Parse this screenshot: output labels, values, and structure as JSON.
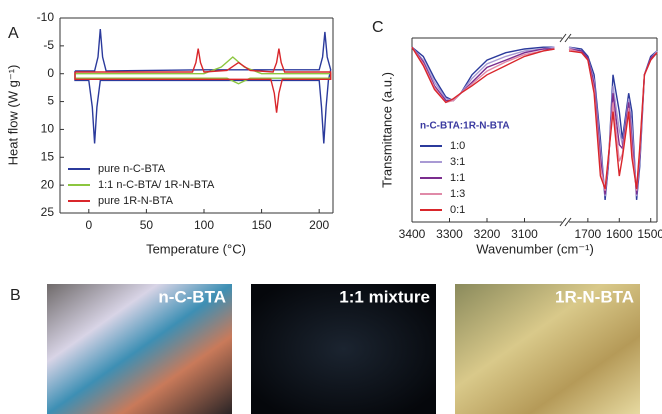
{
  "chart_data": [
    {
      "type": "line",
      "panel": "A",
      "xlabel": "Temperature (°C)",
      "ylabel": "Heat flow (W g⁻¹)",
      "xlim": [
        -25,
        212
      ],
      "xticks": [
        0,
        50,
        100,
        150,
        200
      ],
      "ylim": [
        25,
        -10
      ],
      "yticks": [
        -10,
        -5,
        0,
        5,
        10,
        15,
        20,
        25
      ],
      "legend": "lower left",
      "series": [
        {
          "name": "pure n-C-BTA",
          "color": "#2b3a9c",
          "x": [
            -12,
            5,
            8,
            10,
            12,
            15,
            100,
            200,
            203,
            205,
            207,
            210,
            208,
            206,
            204,
            202,
            200,
            100,
            10,
            7,
            5,
            3,
            0,
            -12,
            -12
          ],
          "values": [
            -0.5,
            -0.5,
            -3,
            -8,
            -3,
            -0.5,
            -0.7,
            -0.7,
            -3,
            -7.5,
            -3,
            -0.7,
            1.2,
            6,
            12.5,
            6,
            1.2,
            1.2,
            1.2,
            6,
            12.5,
            6,
            1.2,
            1.2,
            -0.5
          ]
        },
        {
          "name": "1:1 n-C-BTA/ 1R-N-BTA",
          "color": "#8cc63f",
          "x": [
            -12,
            100,
            115,
            125,
            135,
            150,
            210,
            210,
            140,
            130,
            120,
            0,
            -12,
            -12
          ],
          "values": [
            0,
            0,
            -1.2,
            -3,
            -1.2,
            0,
            0,
            0.8,
            0.8,
            1.8,
            0.8,
            0.8,
            0.8,
            0
          ]
        },
        {
          "name": "pure 1R-N-BTA",
          "color": "#d9262b",
          "x": [
            -12,
            90,
            93,
            95,
            97,
            100,
            120,
            130,
            140,
            160,
            163,
            165,
            167,
            170,
            210,
            210,
            168,
            165,
            163,
            161,
            158,
            0,
            -12,
            -12
          ],
          "values": [
            -0.3,
            -0.3,
            -2,
            -4.5,
            -2,
            -0.3,
            -0.6,
            -2,
            -0.6,
            -0.3,
            -2,
            -4.5,
            -2,
            -0.3,
            -0.3,
            1,
            1,
            3.5,
            7,
            3.5,
            1,
            1,
            1,
            -0.3
          ]
        }
      ]
    },
    {
      "type": "line",
      "panel": "C",
      "xlabel": "Wavenumber (cm⁻¹)",
      "ylabel": "Transmittance (a.u.)",
      "xlim": [
        3400,
        3000
      ],
      "xticks": [
        3400,
        3300,
        3200,
        3100
      ],
      "ylim": [
        0,
        1
      ],
      "legend": "lower left",
      "legend_title": "n-C-BTA:1R-N-BTA",
      "x": [
        3400,
        3370,
        3340,
        3310,
        3290,
        3270,
        3240,
        3200,
        3150,
        3100,
        3050,
        3020
      ],
      "series": [
        {
          "name": "1:0",
          "color": "#2b3a9c",
          "values": [
            0.95,
            0.9,
            0.78,
            0.68,
            0.66,
            0.7,
            0.8,
            0.88,
            0.92,
            0.94,
            0.95,
            0.95
          ]
        },
        {
          "name": "3:1",
          "color": "#a99ad4",
          "values": [
            0.95,
            0.88,
            0.76,
            0.67,
            0.66,
            0.7,
            0.78,
            0.86,
            0.9,
            0.93,
            0.94,
            0.95
          ]
        },
        {
          "name": "1:1",
          "color": "#7b2d8e",
          "values": [
            0.95,
            0.87,
            0.74,
            0.66,
            0.66,
            0.7,
            0.76,
            0.84,
            0.88,
            0.92,
            0.94,
            0.94
          ]
        },
        {
          "name": "1:3",
          "color": "#e08aa8",
          "values": [
            0.95,
            0.86,
            0.73,
            0.65,
            0.66,
            0.7,
            0.75,
            0.82,
            0.87,
            0.91,
            0.93,
            0.94
          ]
        },
        {
          "name": "0:1",
          "color": "#d9262b",
          "values": [
            0.95,
            0.85,
            0.72,
            0.65,
            0.67,
            0.7,
            0.74,
            0.8,
            0.85,
            0.9,
            0.93,
            0.94
          ]
        }
      ]
    },
    {
      "type": "line",
      "xlim": [
        1760,
        1480
      ],
      "xticks": [
        1700,
        1600,
        1500
      ],
      "ylim": [
        0,
        1
      ],
      "x": [
        1760,
        1720,
        1700,
        1680,
        1660,
        1645,
        1635,
        1620,
        1600,
        1590,
        1570,
        1560,
        1545,
        1535,
        1520,
        1500,
        1480
      ],
      "series": [
        {
          "name": "1:0",
          "color": "#2b3a9c",
          "values": [
            0.95,
            0.94,
            0.9,
            0.8,
            0.45,
            0.12,
            0.3,
            0.8,
            0.6,
            0.45,
            0.7,
            0.6,
            0.12,
            0.3,
            0.8,
            0.9,
            0.93
          ]
        },
        {
          "name": "3:1",
          "color": "#a99ad4",
          "values": [
            0.95,
            0.93,
            0.89,
            0.77,
            0.4,
            0.14,
            0.31,
            0.74,
            0.5,
            0.42,
            0.67,
            0.52,
            0.14,
            0.33,
            0.8,
            0.89,
            0.93
          ]
        },
        {
          "name": "1:1",
          "color": "#7b2d8e",
          "values": [
            0.94,
            0.93,
            0.89,
            0.75,
            0.35,
            0.15,
            0.32,
            0.7,
            0.42,
            0.4,
            0.65,
            0.45,
            0.15,
            0.35,
            0.8,
            0.89,
            0.92
          ]
        },
        {
          "name": "1:3",
          "color": "#e08aa8",
          "values": [
            0.94,
            0.92,
            0.88,
            0.72,
            0.3,
            0.17,
            0.34,
            0.65,
            0.33,
            0.37,
            0.62,
            0.4,
            0.17,
            0.38,
            0.8,
            0.88,
            0.92
          ]
        },
        {
          "name": "0:1",
          "color": "#d9262b",
          "values": [
            0.93,
            0.92,
            0.88,
            0.7,
            0.25,
            0.18,
            0.35,
            0.6,
            0.25,
            0.35,
            0.6,
            0.35,
            0.18,
            0.4,
            0.8,
            0.88,
            0.92
          ]
        }
      ]
    }
  ],
  "panel_b": {
    "panel": "B",
    "images": [
      "n-C-BTA",
      "1:1 mixture",
      "1R-N-BTA"
    ]
  }
}
